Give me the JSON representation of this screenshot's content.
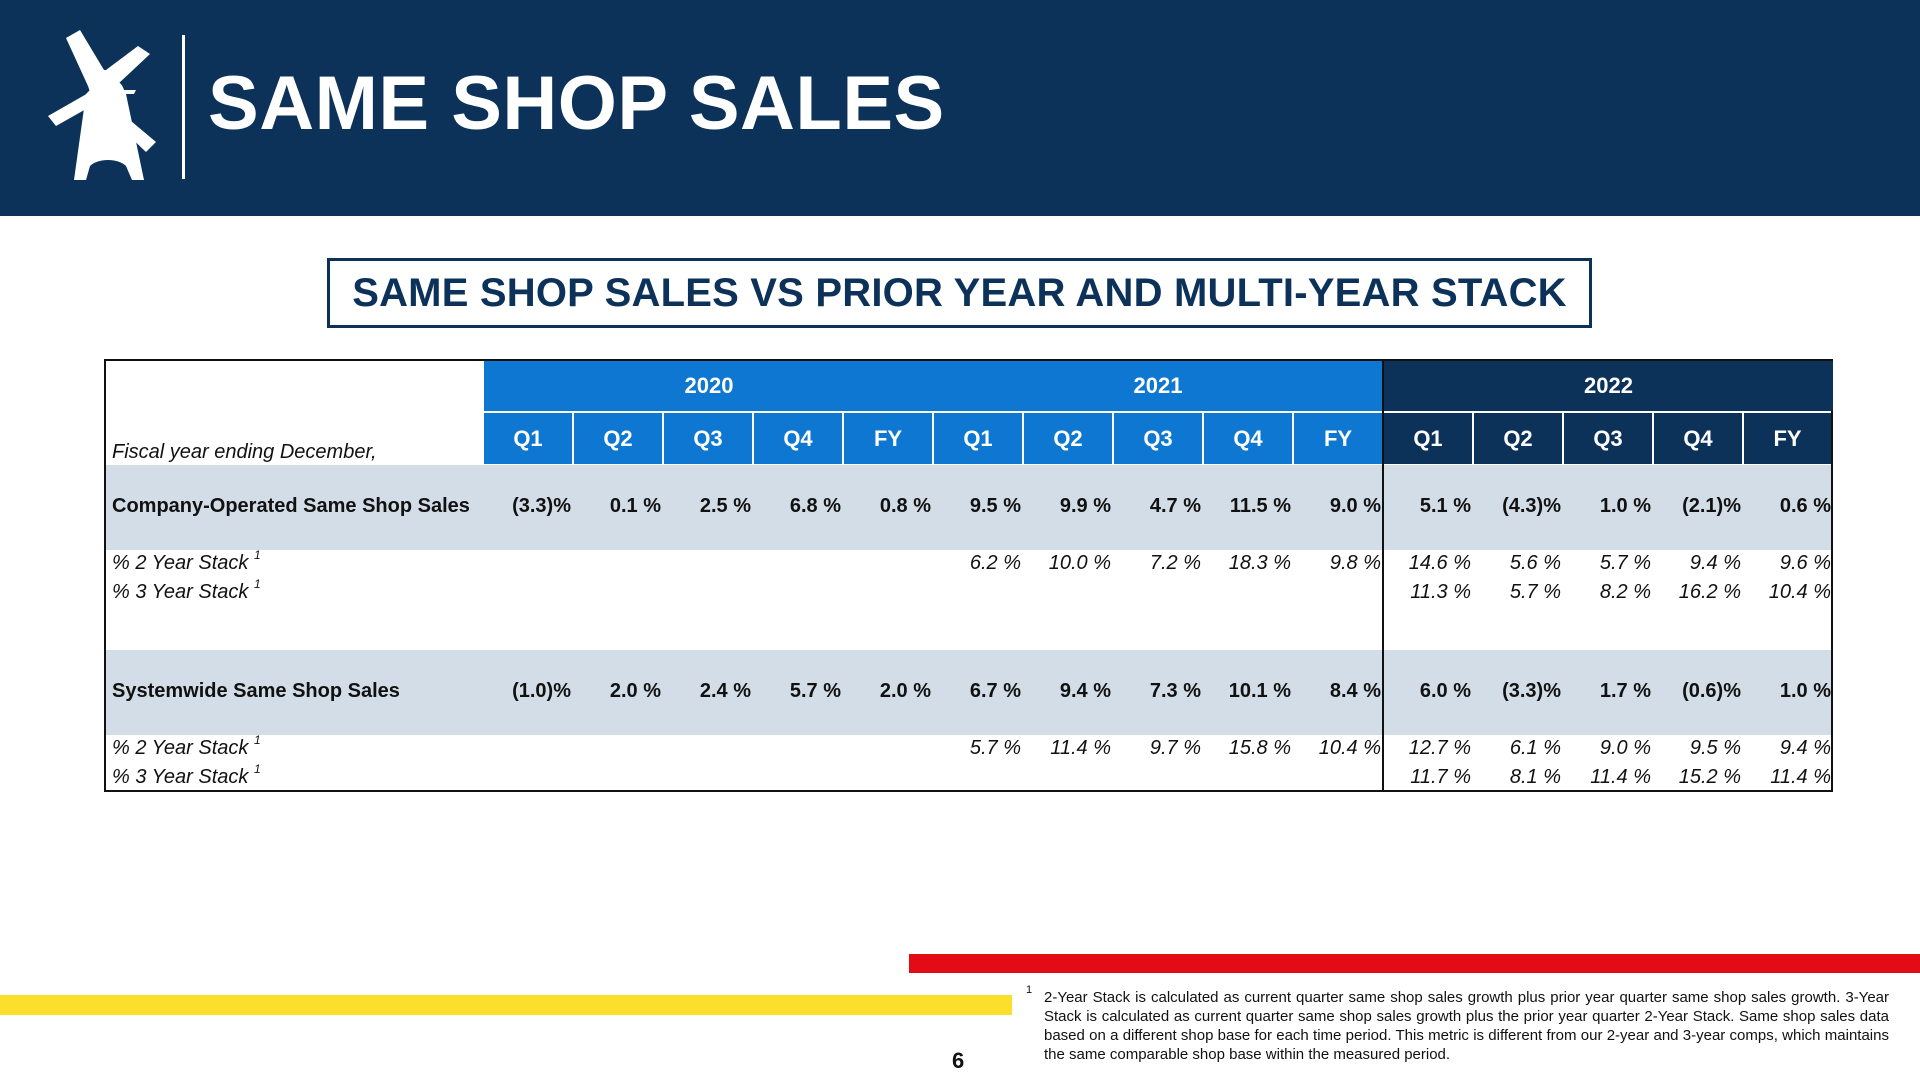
{
  "page": {
    "title": "SAME SHOP SALES",
    "number": "6"
  },
  "subtitle": "SAME SHOP SALES VS PRIOR YEAR AND MULTI-YEAR STACK",
  "colors": {
    "header_navy": "#0d3259",
    "year_blue": "#0e77d1",
    "row_shade": "#d3dde7",
    "red_stripe": "#e30b16",
    "yellow_stripe": "#fcdf2a"
  },
  "table": {
    "header_label": "Fiscal year ending December,",
    "years": [
      "2020",
      "2021",
      "2022"
    ],
    "quarters": [
      "Q1",
      "Q2",
      "Q3",
      "Q4",
      "FY",
      "Q1",
      "Q2",
      "Q3",
      "Q4",
      "FY",
      "Q1",
      "Q2",
      "Q3",
      "Q4",
      "FY"
    ],
    "footnote_marker": "1",
    "rows": [
      {
        "label": "Company-Operated Same Shop Sales",
        "values": [
          "(3.3)%",
          "0.1 %",
          "2.5 %",
          "6.8 %",
          "0.8 %",
          "9.5 %",
          "9.9 %",
          "4.7 %",
          "11.5 %",
          "9.0 %",
          "5.1 %",
          "(4.3)%",
          "1.0 %",
          "(2.1)%",
          "0.6 %"
        ]
      },
      {
        "label": "% 2 Year Stack",
        "values": [
          "",
          "",
          "",
          "",
          "",
          "6.2 %",
          "10.0 %",
          "7.2 %",
          "18.3 %",
          "9.8 %",
          "14.6 %",
          "5.6 %",
          "5.7 %",
          "9.4 %",
          "9.6 %"
        ]
      },
      {
        "label": "% 3 Year Stack",
        "values": [
          "",
          "",
          "",
          "",
          "",
          "",
          "",
          "",
          "",
          "",
          "11.3 %",
          "5.7 %",
          "8.2 %",
          "16.2 %",
          "10.4 %"
        ]
      },
      {
        "label": "Systemwide Same Shop Sales",
        "values": [
          "(1.0)%",
          "2.0 %",
          "2.4 %",
          "5.7 %",
          "2.0 %",
          "6.7 %",
          "9.4 %",
          "7.3 %",
          "10.1 %",
          "8.4 %",
          "6.0 %",
          "(3.3)%",
          "1.7 %",
          "(0.6)%",
          "1.0 %"
        ]
      },
      {
        "label": "% 2 Year Stack",
        "values": [
          "",
          "",
          "",
          "",
          "",
          "5.7 %",
          "11.4 %",
          "9.7 %",
          "15.8 %",
          "10.4 %",
          "12.7 %",
          "6.1 %",
          "9.0 %",
          "9.5 %",
          "9.4 %"
        ]
      },
      {
        "label": "% 3 Year Stack",
        "values": [
          "",
          "",
          "",
          "",
          "",
          "",
          "",
          "",
          "",
          "",
          "11.7 %",
          "8.1 %",
          "11.4 %",
          "15.2 %",
          "11.4 %"
        ]
      }
    ]
  },
  "footnote": {
    "marker": "1",
    "text": "2-Year Stack is calculated as current quarter same shop sales growth plus prior year quarter same shop sales growth. 3-Year Stack is calculated as current quarter same shop sales growth plus the prior year quarter 2-Year Stack. Same shop sales data based on a different shop base for each time period. This metric is different from our 2-year and 3-year comps, which maintains the same comparable shop base within the measured period."
  }
}
